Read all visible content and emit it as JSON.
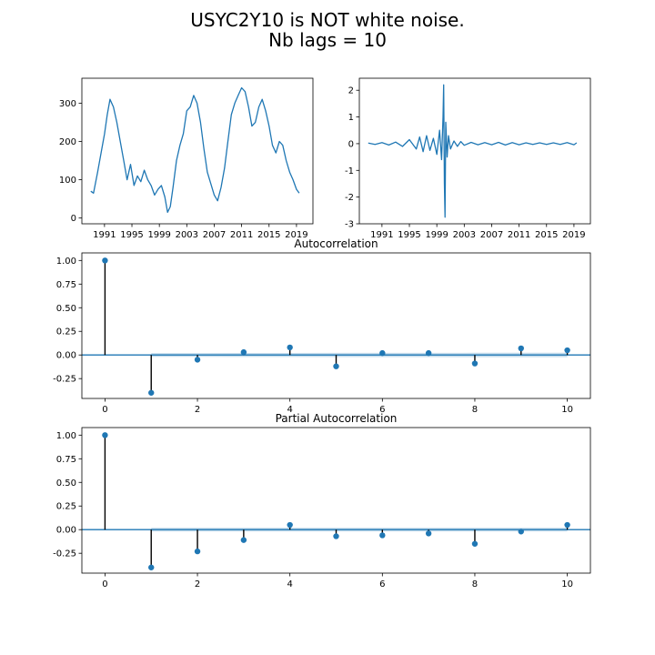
{
  "figure": {
    "title_line1": "USYC2Y10 is NOT white noise.",
    "title_line2": "Nb lags = 10"
  },
  "colors": {
    "series": "#1f77b4",
    "stem": "#000000",
    "conf_band": "#1f77b4"
  },
  "chart_data": [
    {
      "type": "line",
      "title": "",
      "x_ticks": [
        "1991",
        "1995",
        "1999",
        "2003",
        "2007",
        "2011",
        "2015",
        "2019"
      ],
      "x_range": [
        1987.7,
        2021.4
      ],
      "y_ticks": [
        0,
        100,
        200,
        300
      ],
      "ylim": [
        -15,
        365
      ],
      "series": [
        {
          "x": [
            1989.0,
            1989.4,
            1990.0,
            1990.5,
            1991.0,
            1991.4,
            1991.8,
            1992.3,
            1992.8,
            1993.3,
            1993.8,
            1994.3,
            1994.8,
            1995.3,
            1995.8,
            1996.3,
            1996.8,
            1997.3,
            1997.8,
            1998.3,
            1998.8,
            1999.3,
            1999.8,
            2000.2,
            2000.6,
            2001.0,
            2001.5,
            2002.0,
            2002.5,
            2003.0,
            2003.5,
            2004.0,
            2004.5,
            2005.0,
            2005.5,
            2006.0,
            2006.5,
            2007.0,
            2007.5,
            2008.0,
            2008.5,
            2009.0,
            2009.5,
            2010.0,
            2010.5,
            2011.0,
            2011.5,
            2012.0,
            2012.5,
            2013.0,
            2013.5,
            2014.0,
            2014.5,
            2015.0,
            2015.5,
            2016.0,
            2016.5,
            2017.0,
            2017.5,
            2018.0,
            2018.5,
            2019.0,
            2019.4
          ],
          "y": [
            70,
            65,
            120,
            170,
            220,
            270,
            310,
            290,
            250,
            200,
            150,
            100,
            140,
            85,
            110,
            95,
            125,
            100,
            85,
            60,
            75,
            85,
            55,
            15,
            30,
            80,
            150,
            190,
            220,
            280,
            290,
            320,
            300,
            250,
            180,
            120,
            90,
            60,
            45,
            80,
            130,
            200,
            270,
            300,
            320,
            340,
            330,
            290,
            240,
            250,
            290,
            310,
            280,
            240,
            190,
            170,
            200,
            190,
            150,
            120,
            100,
            75,
            65
          ]
        }
      ]
    },
    {
      "type": "line",
      "title": "",
      "x_ticks": [
        "1991",
        "1995",
        "1999",
        "2003",
        "2007",
        "2011",
        "2015",
        "2019"
      ],
      "x_range": [
        1987.7,
        2021.4
      ],
      "y_ticks": [
        -3,
        -2,
        -1,
        0,
        1,
        2
      ],
      "ylim": [
        -3,
        2.45
      ],
      "series": [
        {
          "x": [
            1989.0,
            1990.0,
            1991.0,
            1992.0,
            1993.0,
            1994.0,
            1995.0,
            1996.0,
            1996.5,
            1997.0,
            1997.5,
            1998.0,
            1998.5,
            1999.0,
            1999.4,
            1999.7,
            1999.9,
            2000.0,
            2000.1,
            2000.2,
            2000.3,
            2000.5,
            2000.7,
            2001.0,
            2001.5,
            2002.0,
            2002.5,
            2003.0,
            2004.0,
            2005.0,
            2006.0,
            2007.0,
            2008.0,
            2009.0,
            2010.0,
            2011.0,
            2012.0,
            2013.0,
            2014.0,
            2015.0,
            2016.0,
            2017.0,
            2018.0,
            2019.0,
            2019.4
          ],
          "y": [
            0.02,
            -0.03,
            0.04,
            -0.05,
            0.06,
            -0.1,
            0.15,
            -0.2,
            0.25,
            -0.3,
            0.3,
            -0.25,
            0.2,
            -0.4,
            0.5,
            -0.6,
            1.0,
            2.2,
            -1.5,
            -2.75,
            0.8,
            -0.5,
            0.3,
            -0.2,
            0.1,
            -0.1,
            0.08,
            -0.06,
            0.05,
            -0.04,
            0.04,
            -0.04,
            0.05,
            -0.05,
            0.04,
            -0.04,
            0.03,
            -0.03,
            0.03,
            -0.03,
            0.03,
            -0.03,
            0.04,
            -0.04,
            0.03
          ]
        }
      ]
    },
    {
      "type": "stem",
      "title": "Autocorrelation",
      "x_ticks": [
        0,
        2,
        4,
        6,
        8,
        10
      ],
      "xlim": [
        -0.5,
        10.5
      ],
      "y_ticks": [
        "1.00",
        "0.75",
        "0.50",
        "0.25",
        "0.00",
        "-0.25"
      ],
      "ylim": [
        -0.46,
        1.08
      ],
      "lags": [
        0,
        1,
        2,
        3,
        4,
        5,
        6,
        7,
        8,
        9,
        10
      ],
      "values": [
        1.0,
        -0.4,
        -0.05,
        0.03,
        0.08,
        -0.12,
        0.02,
        0.02,
        -0.09,
        0.07,
        0.05
      ],
      "conf_band": [
        0.0,
        0.02,
        0.02,
        0.021,
        0.021,
        0.022,
        0.022,
        0.022,
        0.023,
        0.023,
        0.023
      ]
    },
    {
      "type": "stem",
      "title": "Partial Autocorrelation",
      "x_ticks": [
        0,
        2,
        4,
        6,
        8,
        10
      ],
      "xlim": [
        -0.5,
        10.5
      ],
      "y_ticks": [
        "1.00",
        "0.75",
        "0.50",
        "0.25",
        "0.00",
        "-0.25"
      ],
      "ylim": [
        -0.46,
        1.08
      ],
      "lags": [
        0,
        1,
        2,
        3,
        4,
        5,
        6,
        7,
        8,
        9,
        10
      ],
      "values": [
        1.0,
        -0.4,
        -0.23,
        -0.11,
        0.05,
        -0.07,
        -0.06,
        -0.04,
        -0.15,
        -0.02,
        0.05
      ],
      "conf_band": [
        0.0,
        0.02,
        0.02,
        0.02,
        0.02,
        0.02,
        0.02,
        0.02,
        0.02,
        0.02,
        0.02
      ]
    }
  ]
}
